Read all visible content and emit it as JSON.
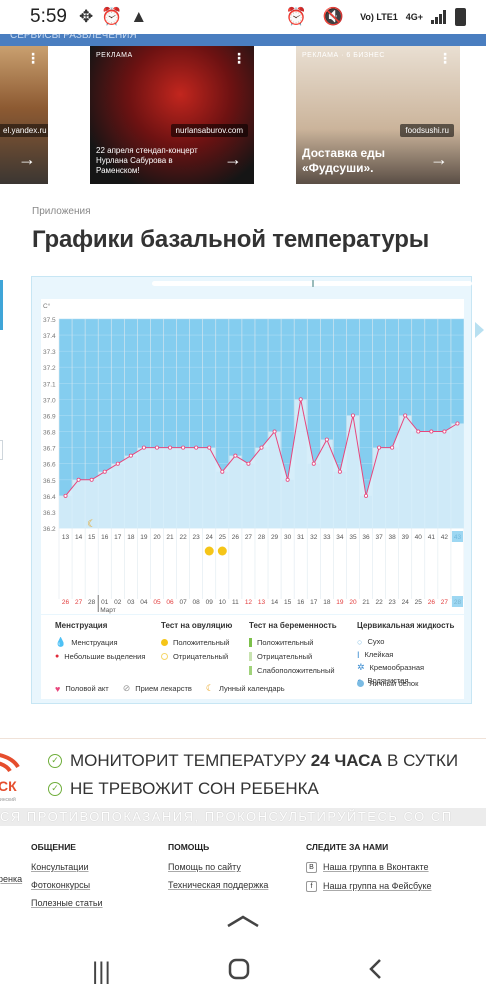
{
  "status_bar": {
    "time": "5:59",
    "network": "4G+",
    "lte": "Vo) LTE1"
  },
  "ads": {
    "tabs_strip": "СЕРВИСЫ  РАЗВЛЕЧЕНИЯ",
    "cards": [
      {
        "label": "",
        "source": "el.yandex.ru",
        "text": ""
      },
      {
        "label": "РЕКЛАМА",
        "source": "nurlansaburov.com",
        "text": "22 апреля стендап-концерт Нурлана Сабурова в Раменском!"
      },
      {
        "label": "РЕКЛАМА · 6 БИЗНЕС",
        "source": "foodsushi.ru",
        "text": "Доставка еды «Фудсуши»."
      }
    ]
  },
  "article": {
    "category": "Приложения",
    "title": "Графики базальной температуры"
  },
  "chart_data": {
    "type": "line",
    "y_unit": "C°",
    "ylim": [
      36.2,
      37.5
    ],
    "y_ticks": [
      "37.5",
      "37.4",
      "37.3",
      "37.2",
      "37.1",
      "37.0",
      "36.9",
      "36.8",
      "36.7",
      "36.6",
      "36.5",
      "36.4",
      "36.3",
      "36.2"
    ],
    "cycle_days": [
      "13",
      "14",
      "15",
      "16",
      "17",
      "18",
      "19",
      "20",
      "21",
      "22",
      "23",
      "24",
      "25",
      "26",
      "27",
      "28",
      "29",
      "30",
      "31",
      "32",
      "33",
      "34",
      "35",
      "36",
      "37",
      "38",
      "39",
      "40",
      "41",
      "42",
      "43"
    ],
    "temperatures": [
      36.4,
      36.5,
      36.5,
      36.55,
      36.6,
      36.65,
      36.7,
      36.7,
      36.7,
      36.7,
      36.7,
      36.7,
      36.55,
      36.65,
      36.6,
      36.7,
      36.8,
      36.5,
      37.0,
      36.6,
      36.75,
      36.55,
      36.9,
      36.4,
      36.7,
      36.7,
      36.9,
      36.8,
      36.8,
      36.8,
      36.85
    ],
    "dates": [
      "26",
      "27",
      "28",
      "01",
      "02",
      "03",
      "04",
      "05",
      "06",
      "07",
      "08",
      "09",
      "10",
      "11",
      "12",
      "13",
      "14",
      "15",
      "16",
      "17",
      "18",
      "19",
      "20",
      "21",
      "22",
      "23",
      "24",
      "25",
      "26",
      "27",
      "28"
    ],
    "weekend_dates": [
      "26",
      "27",
      "05",
      "06",
      "12",
      "13",
      "19",
      "20",
      "26",
      "27"
    ],
    "month_label": "Март",
    "annotations": {
      "moon_day": "15",
      "ovulation_test_days": [
        "24",
        "25"
      ]
    }
  },
  "legend": {
    "menstruation": {
      "title": "Менструация",
      "items": [
        "Менструация",
        "Небольшие выделения"
      ]
    },
    "ovulation": {
      "title": "Тест на овуляцию",
      "items": [
        "Положительный",
        "Отрицательный"
      ]
    },
    "pregnancy": {
      "title": "Тест на беременность",
      "items": [
        "Положительный",
        "Отрицательный",
        "Слабоположительный"
      ]
    },
    "cervical": {
      "title": "Цервикальная жидкость",
      "items": [
        "Сухо",
        "Клейкая",
        "Кремообразная",
        "Водянистая",
        "Яичный белок"
      ]
    },
    "bottom": [
      "Половой акт",
      "Прием лекарств",
      "Лунный календарь"
    ]
  },
  "banner": {
    "line1_pre": "МОНИТОРИТ ТЕМПЕРАТУРУ ",
    "line1_bold": "24 ЧАСА",
    "line1_post": " В СУТКИ",
    "line2": "НЕ ТРЕВОЖИТ СОН РЕБЕНКА",
    "logo_text": "СК",
    "logo_sub": "инский",
    "disclaimer": "СЯ ПРОТИВОПОКАЗАНИЯ, ПРОКОНСУЛЬТИРУЙТЕСЬ СО СП"
  },
  "footer": {
    "col0": [
      "",
      "ренка"
    ],
    "col1": {
      "title": "ОБЩЕНИЕ",
      "links": [
        "Консультации",
        "Фотоконкурсы",
        "Полезные статьи"
      ]
    },
    "col2": {
      "title": "ПОМОЩЬ",
      "links": [
        "Помощь по сайту",
        "Техническая поддержка"
      ]
    },
    "col3": {
      "title": "СЛЕДИТЕ ЗА НАМИ",
      "links": [
        "Наша группа в Вконтакте",
        "Наша группа на Фейсбуке"
      ]
    }
  },
  "colors": {
    "chart_fill": "#84cdef",
    "line": "#e8467c",
    "accent": "#4a7ec0"
  }
}
